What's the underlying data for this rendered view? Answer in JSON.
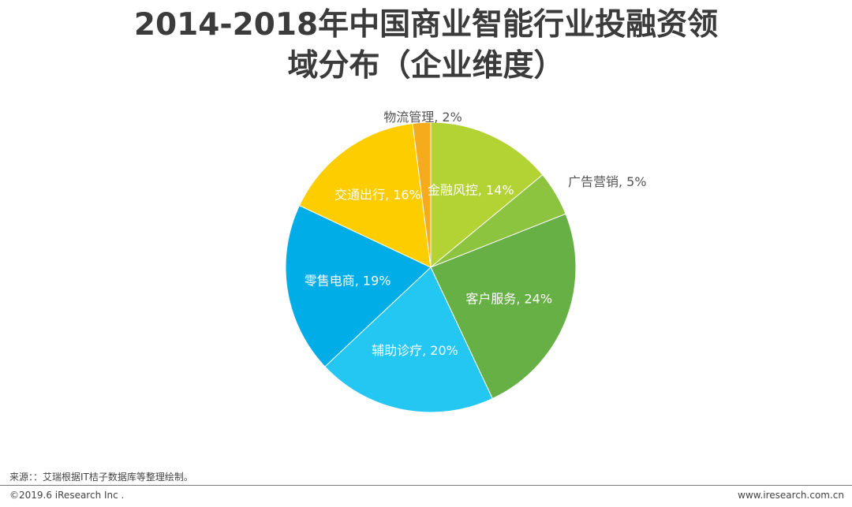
{
  "header": {
    "title_line1": "2014-2018年中国商业智能行业投融资领",
    "title_line2": "域分布（企业维度）"
  },
  "chart_data": {
    "type": "pie",
    "title": "2014-2018年中国商业智能行业投融资领域分布（企业维度）",
    "slices": [
      {
        "label": "金融风控",
        "value": 14,
        "display": "金融风控, 14%",
        "color": "#b3d234",
        "label_inside": true
      },
      {
        "label": "广告营销",
        "value": 5,
        "display": "广告营销, 5%",
        "color": "#8cc43f",
        "label_inside": false
      },
      {
        "label": "客户服务",
        "value": 24,
        "display": "客户服务, 24%",
        "color": "#67b046",
        "label_inside": true
      },
      {
        "label": "辅助诊疗",
        "value": 20,
        "display": "辅助诊疗, 20%",
        "color": "#23c7f1",
        "label_inside": true
      },
      {
        "label": "零售电商",
        "value": 19,
        "display": "零售电商, 19%",
        "color": "#00ade6",
        "label_inside": true
      },
      {
        "label": "交通出行",
        "value": 16,
        "display": "交通出行, 16%",
        "color": "#fecd00",
        "label_inside": true
      },
      {
        "label": "物流管理",
        "value": 2,
        "display": "物流管理, 2%",
        "color": "#f6ab1d",
        "label_inside": false
      }
    ],
    "start": "12 o'clock",
    "direction": "clockwise"
  },
  "footer": {
    "source": "来源：：艾瑞根据IT桔子数据库等整理绘制。",
    "copyright": "©2019.6 iResearch Inc .",
    "website": "www.iresearch.com.cn"
  }
}
